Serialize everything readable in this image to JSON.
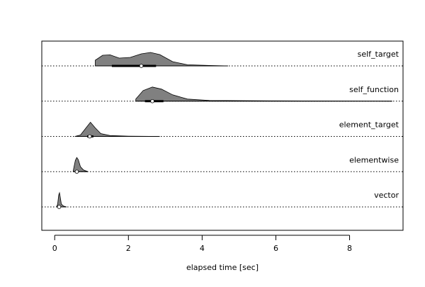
{
  "chart_data": {
    "type": "violin",
    "xlabel": "elapsed time [sec]",
    "xlim": [
      -0.35,
      9.45
    ],
    "xticks": [
      0,
      2,
      4,
      6,
      8
    ],
    "xtick_labels": [
      "0",
      "2",
      "4",
      "6",
      "8"
    ],
    "grid": false,
    "legend": "none",
    "colors": {
      "fill": "#808080",
      "outline": "#000000",
      "median": "#ffffff"
    },
    "series": [
      {
        "name": "vector",
        "min": 0.05,
        "q1": 0.08,
        "median": 0.12,
        "q3": 0.15,
        "max": 0.32,
        "density": [
          [
            0.05,
            0
          ],
          [
            0.08,
            0.2
          ],
          [
            0.11,
            0.85
          ],
          [
            0.13,
            1.0
          ],
          [
            0.15,
            0.7
          ],
          [
            0.18,
            0.2
          ],
          [
            0.24,
            0.06
          ],
          [
            0.32,
            0
          ]
        ]
      },
      {
        "name": "elementwise",
        "min": 0.5,
        "q1": 0.55,
        "median": 0.6,
        "q3": 0.65,
        "max": 0.9,
        "density": [
          [
            0.5,
            0
          ],
          [
            0.52,
            0.3
          ],
          [
            0.56,
            0.8
          ],
          [
            0.6,
            1.0
          ],
          [
            0.64,
            0.85
          ],
          [
            0.7,
            0.35
          ],
          [
            0.78,
            0.12
          ],
          [
            0.9,
            0
          ]
        ]
      },
      {
        "name": "element_target",
        "min": 0.55,
        "q1": 0.88,
        "median": 0.95,
        "q3": 1.05,
        "max": 2.85,
        "density": [
          [
            0.55,
            0
          ],
          [
            0.7,
            0.1
          ],
          [
            0.85,
            0.6
          ],
          [
            0.97,
            1.0
          ],
          [
            1.1,
            0.6
          ],
          [
            1.25,
            0.2
          ],
          [
            1.5,
            0.06
          ],
          [
            2.0,
            0.02
          ],
          [
            2.85,
            0
          ]
        ]
      },
      {
        "name": "self_function",
        "min": 2.2,
        "q1": 2.45,
        "median": 2.65,
        "q3": 2.95,
        "max": 9.15,
        "density": [
          [
            2.2,
            0.15
          ],
          [
            2.4,
            0.75
          ],
          [
            2.65,
            1.0
          ],
          [
            2.9,
            0.85
          ],
          [
            3.2,
            0.45
          ],
          [
            3.6,
            0.15
          ],
          [
            4.2,
            0.05
          ],
          [
            6.0,
            0.02
          ],
          [
            9.15,
            0
          ]
        ]
      },
      {
        "name": "self_target",
        "min": 1.1,
        "q1": 1.55,
        "median": 2.35,
        "q3": 2.75,
        "max": 4.7,
        "density": [
          [
            1.1,
            0.4
          ],
          [
            1.3,
            0.75
          ],
          [
            1.5,
            0.78
          ],
          [
            1.75,
            0.55
          ],
          [
            2.05,
            0.6
          ],
          [
            2.35,
            0.85
          ],
          [
            2.6,
            0.95
          ],
          [
            2.85,
            0.8
          ],
          [
            3.2,
            0.3
          ],
          [
            3.6,
            0.08
          ],
          [
            4.2,
            0.03
          ],
          [
            4.7,
            0
          ]
        ]
      }
    ]
  }
}
